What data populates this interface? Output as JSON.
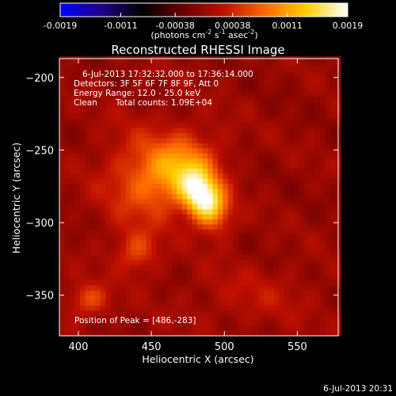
{
  "chart_data": {
    "type": "heatmap",
    "title": "Reconstructed RHESSI Image",
    "xlabel": "Heliocentric X (arcsec)",
    "ylabel": "Heliocentric Y (arcsec)",
    "xlim": [
      387,
      578
    ],
    "ylim": [
      -378,
      -187
    ],
    "xticks": [
      400,
      450,
      500,
      550
    ],
    "yticks": [
      -200,
      -250,
      -300,
      -350
    ],
    "colorbar": {
      "label_main": "(photons cm",
      "label_sup1": "-2",
      "label_mid1": " s",
      "label_sup2": "-1",
      "label_mid2": " asec",
      "label_sup3": "-2",
      "label_end": ")",
      "range": [
        -0.0019,
        0.0019
      ],
      "ticks": [
        "-0.0019",
        "-0.0011",
        "-0.00038",
        "0.00038",
        "0.0011",
        "0.0019"
      ],
      "colormap": [
        "#0000ff",
        "#20008a",
        "#000000",
        "#6a0000",
        "#c01000",
        "#ff6a00",
        "#ffd000",
        "#ffffff"
      ]
    },
    "sources": [
      {
        "x": 486,
        "y": -283,
        "amp": 1.0,
        "sx": 9,
        "sy": 14,
        "angle": 30
      },
      {
        "x": 468,
        "y": -263,
        "amp": 0.5,
        "sx": 20,
        "sy": 16,
        "angle": 30
      },
      {
        "x": 440,
        "y": -270,
        "amp": 0.22,
        "sx": 20,
        "sy": 26,
        "angle": 0
      },
      {
        "x": 407,
        "y": -353,
        "amp": 0.32,
        "sx": 10,
        "sy": 8,
        "angle": 0
      },
      {
        "x": 440,
        "y": -320,
        "amp": 0.28,
        "sx": 10,
        "sy": 10,
        "angle": 0
      },
      {
        "x": 520,
        "y": -350,
        "amp": 0.12,
        "sx": 30,
        "sy": 15,
        "angle": 0
      }
    ],
    "annotations": {
      "time": "6-Jul-2013 17:32:32.000 to 17:36:14.000",
      "detectors": "Detectors: 3F 5F 6F 7F 8F 9F, Att 0",
      "energy": "Energy Range: 12.0 - 25.0 keV",
      "algorithm": "Clean",
      "counts": "Total counts: 1.09E+04",
      "peak": "Position of Peak = [486,-283]"
    }
  },
  "timestamp": "6-Jul-2013 20:31"
}
